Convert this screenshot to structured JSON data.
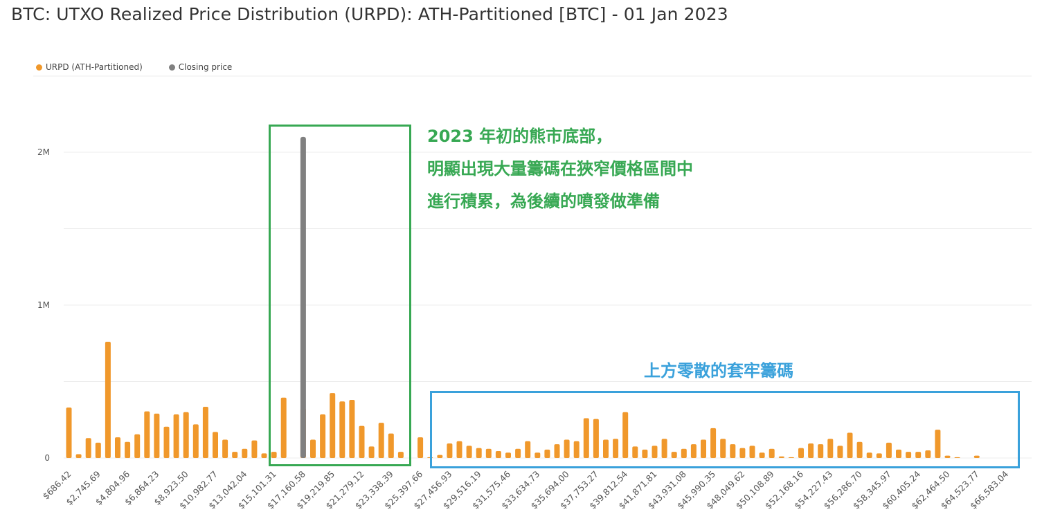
{
  "title": "BTC: UTXO Realized Price Distribution (URPD): ATH-Partitioned [BTC] - 01 Jan 2023",
  "legend": {
    "urpd_label": "URPD (ATH-Partitioned)",
    "closing_label": "Closing price"
  },
  "colors": {
    "urpd": "#f0982b",
    "closing": "#808080",
    "green_box": "#37a853",
    "blue_box": "#3aa1db",
    "grid": "#ececec"
  },
  "annotations": {
    "green_lines": [
      "2023 年初的熊市底部，",
      "明顯出現大量籌碼在狹窄價格區間中",
      "進行積累，為後續的噴發做準備"
    ],
    "blue_text": "上方零散的套牢籌碼"
  },
  "chart_data": {
    "type": "bar",
    "title": "BTC: UTXO Realized Price Distribution (URPD): ATH-Partitioned [BTC] - 01 Jan 2023",
    "xlabel": "",
    "ylabel": "",
    "ylim": [
      0,
      2200000
    ],
    "yticks": [
      0,
      1000000,
      2000000
    ],
    "ytick_labels": [
      "0",
      "1M",
      "2M"
    ],
    "grid": true,
    "legend_position": "top-left",
    "xtick_labels": [
      "$686.42",
      "$2,745.69",
      "$4,804.96",
      "$6,864.23",
      "$8,923.50",
      "$10,982.77",
      "$13,042.04",
      "$15,101.31",
      "$17,160.58",
      "$19,219.85",
      "$21,279.12",
      "$23,338.39",
      "$25,397.66",
      "$27,456.93",
      "$29,516.19",
      "$31,575.46",
      "$33,634.73",
      "$35,694.00",
      "$37,753.27",
      "$39,812.54",
      "$41,871.81",
      "$43,931.08",
      "$45,990.35",
      "$48,049.62",
      "$50,108.89",
      "$52,168.16",
      "$54,227.43",
      "$56,286.70",
      "$58,345.97",
      "$60,405.24",
      "$62,464.50",
      "$64,523.77",
      "$66,583.04"
    ],
    "closing_index": 24,
    "closing_value": 2100000,
    "series": [
      {
        "name": "URPD (ATH-Partitioned)",
        "values": [
          330000,
          25000,
          130000,
          100000,
          760000,
          135000,
          105000,
          155000,
          305000,
          290000,
          205000,
          285000,
          300000,
          220000,
          335000,
          170000,
          120000,
          40000,
          60000,
          115000,
          30000,
          40000,
          395000,
          0,
          325000,
          120000,
          285000,
          425000,
          370000,
          380000,
          210000,
          75000,
          230000,
          160000,
          40000,
          0,
          135000,
          5000,
          20000,
          95000,
          110000,
          80000,
          65000,
          60000,
          45000,
          35000,
          60000,
          110000,
          35000,
          55000,
          90000,
          120000,
          110000,
          260000,
          255000,
          120000,
          125000,
          300000,
          75000,
          55000,
          80000,
          125000,
          40000,
          60000,
          90000,
          120000,
          195000,
          125000,
          90000,
          65000,
          80000,
          35000,
          60000,
          10000,
          5000,
          65000,
          95000,
          90000,
          125000,
          80000,
          165000,
          105000,
          35000,
          30000,
          100000,
          55000,
          40000,
          40000,
          50000,
          185000,
          15000,
          5000,
          0,
          15000
        ]
      },
      {
        "name": "Closing price",
        "values": [
          2100000
        ]
      }
    ]
  }
}
